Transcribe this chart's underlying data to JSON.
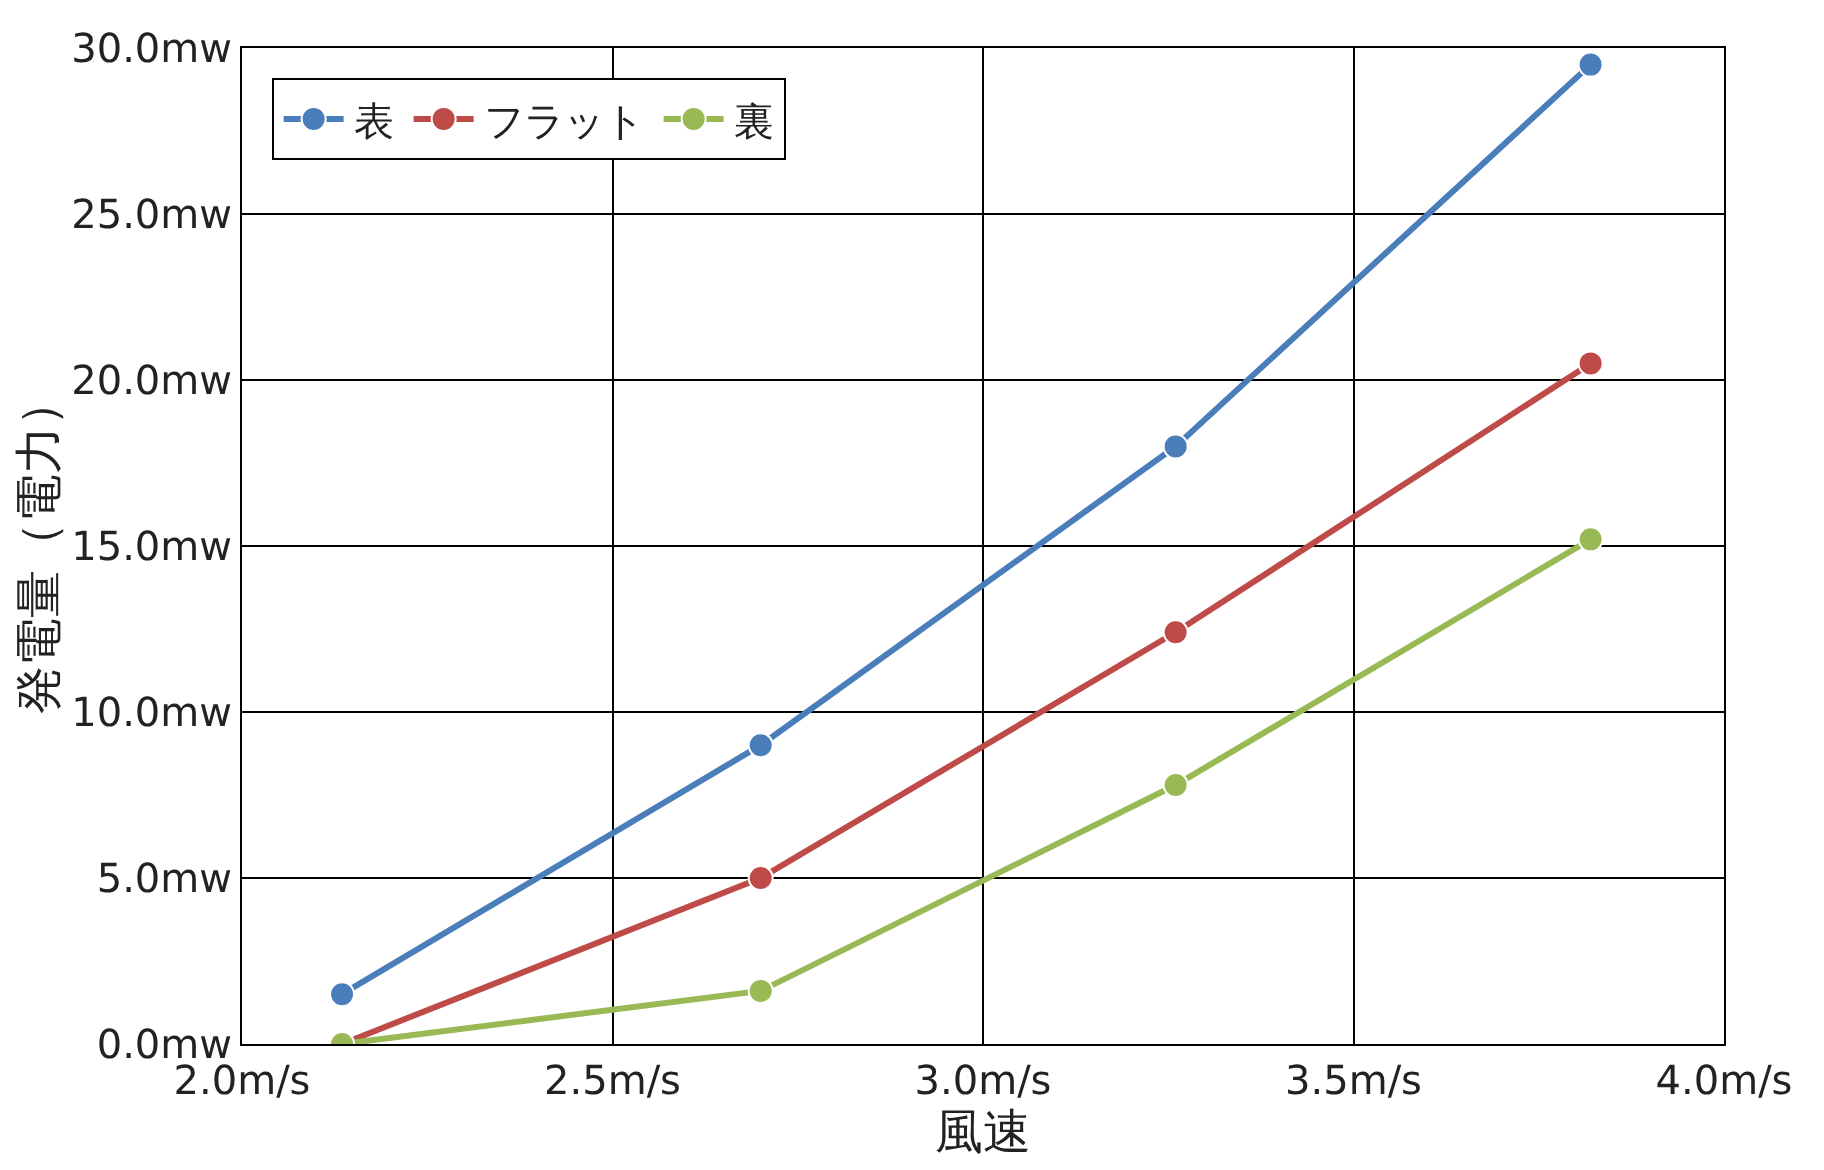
{
  "chart_data": {
    "type": "line",
    "xlabel": "風速",
    "ylabel": "発電量（電力）",
    "x": [
      2.135,
      2.7,
      3.26,
      3.82
    ],
    "series": [
      {
        "name": "表",
        "color": "#4a7ebb",
        "values": [
          1.5,
          9.0,
          18.0,
          29.5
        ]
      },
      {
        "name": "フラット",
        "color": "#be4b48",
        "values": [
          0.0,
          5.0,
          12.4,
          20.5
        ]
      },
      {
        "name": "裏",
        "color": "#98b954",
        "values": [
          0.0,
          1.6,
          7.8,
          15.2
        ]
      }
    ],
    "xlim": [
      2.0,
      4.0
    ],
    "xticks": [
      {
        "value": 2.0,
        "label": "2.0m/s"
      },
      {
        "value": 2.5,
        "label": "2.5m/s"
      },
      {
        "value": 3.0,
        "label": "3.0m/s"
      },
      {
        "value": 3.5,
        "label": "3.5m/s"
      },
      {
        "value": 4.0,
        "label": "4.0m/s"
      }
    ],
    "ylim": [
      0,
      30
    ],
    "yticks": [
      {
        "value": 0,
        "label": "0.0mw"
      },
      {
        "value": 5,
        "label": "5.0mw"
      },
      {
        "value": 10,
        "label": "10.0mw"
      },
      {
        "value": 15,
        "label": "15.0mw"
      },
      {
        "value": 20,
        "label": "20.0mw"
      },
      {
        "value": 25,
        "label": "25.0mw"
      },
      {
        "value": 30,
        "label": "30.0mw"
      }
    ],
    "grid": true,
    "legend": "top left",
    "marker": "circle",
    "line_style": "solid"
  }
}
